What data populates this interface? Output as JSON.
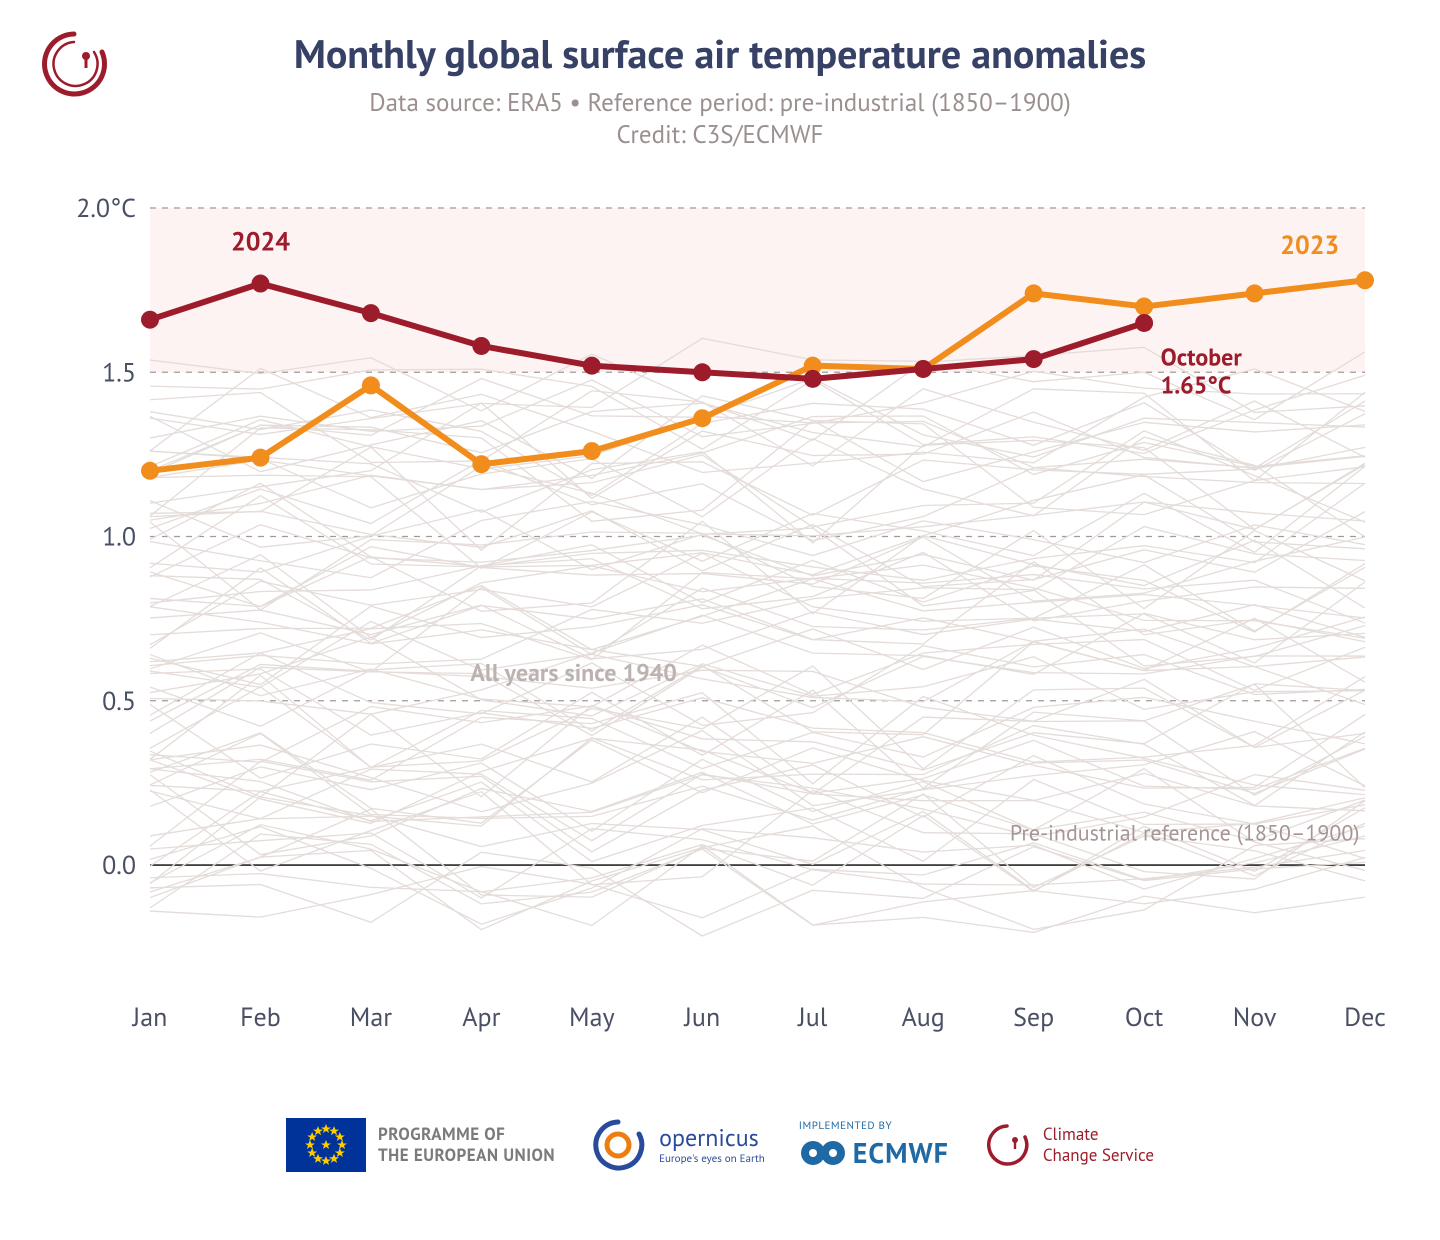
{
  "header": {
    "title": "Monthly global surface air temperature anomalies",
    "subtitle_line1": "Data source: ERA5 • Reference period: pre-industrial (1850–1900)",
    "subtitle_line2": "Credit: C3S/ECMWF"
  },
  "chart": {
    "type": "line",
    "background_color": "#ffffff",
    "shaded_band": {
      "y_min": 1.5,
      "y_max": 2.0,
      "fill": "#fdeded",
      "opacity": 0.65
    },
    "x_categories": [
      "Jan",
      "Feb",
      "Mar",
      "Apr",
      "May",
      "Jun",
      "Jul",
      "Aug",
      "Sep",
      "Oct",
      "Nov",
      "Dec"
    ],
    "x_label_fontsize": 26,
    "x_label_color": "#4a5064",
    "y": {
      "min": -0.35,
      "max": 2.0,
      "ticks": [
        0.0,
        0.5,
        1.0,
        1.5,
        2.0
      ],
      "tick_labels": [
        "0.0",
        "0.5",
        "1.0",
        "1.5",
        "2.0°C"
      ],
      "label_fontsize": 26,
      "label_color": "#4a5064",
      "zero_line_color": "#000000",
      "zero_line_width": 1.4,
      "gridline_color": "#a09a9a",
      "gridline_dash": "6,6",
      "gridline_width": 1.2
    },
    "spaghetti": {
      "label": "All years since 1940",
      "label_color": "#bcb3b0",
      "label_fontsize": 24,
      "label_weight": 700,
      "stroke": "#e4dcd9",
      "stroke_width": 1.3,
      "n_series": 80,
      "y_center_range": [
        -0.1,
        1.45
      ],
      "jitter": 0.16,
      "seed": 20241017
    },
    "reference_label": {
      "text": "Pre-industrial reference (1850–1900)",
      "color": "#a69595",
      "fontsize": 22,
      "x_index": 10.95,
      "y": 0.075,
      "anchor": "end"
    },
    "series_2023": {
      "label": "2023",
      "color": "#f18d1c",
      "line_width": 6,
      "marker_radius": 9,
      "label_fontsize": 26,
      "label_weight": 700,
      "values": [
        1.2,
        1.24,
        1.46,
        1.22,
        1.26,
        1.36,
        1.52,
        1.51,
        1.74,
        1.7,
        1.74,
        1.78
      ]
    },
    "series_2024": {
      "label": "2024",
      "color": "#9c1c2c",
      "line_width": 6,
      "marker_radius": 9,
      "label_fontsize": 26,
      "label_weight": 700,
      "values": [
        1.66,
        1.77,
        1.68,
        1.58,
        1.52,
        1.5,
        1.48,
        1.51,
        1.54,
        1.65
      ]
    },
    "callout": {
      "line1": "October",
      "line2": "1.65°C",
      "color": "#9c1c2c",
      "fontsize": 24,
      "weight": 700,
      "x_index": 9.15,
      "y": 1.52
    }
  },
  "footer": {
    "eu_text": "PROGRAMME OF\nTHE EUROPEAN UNION",
    "copernicus_tag": "Europe's eyes on Earth",
    "ecmwf_tag": "IMPLEMENTED BY",
    "ccs_text": "Climate\nChange Service",
    "colors": {
      "eu_flag_bg": "#003399",
      "eu_star": "#ffcc00",
      "copernicus_outer": "#2a4b9b",
      "copernicus_inner": "#ee7d11",
      "ecmwf": "#1f6aa5",
      "ccs": "#9c1c2c",
      "text": "#7b7b7b"
    }
  }
}
